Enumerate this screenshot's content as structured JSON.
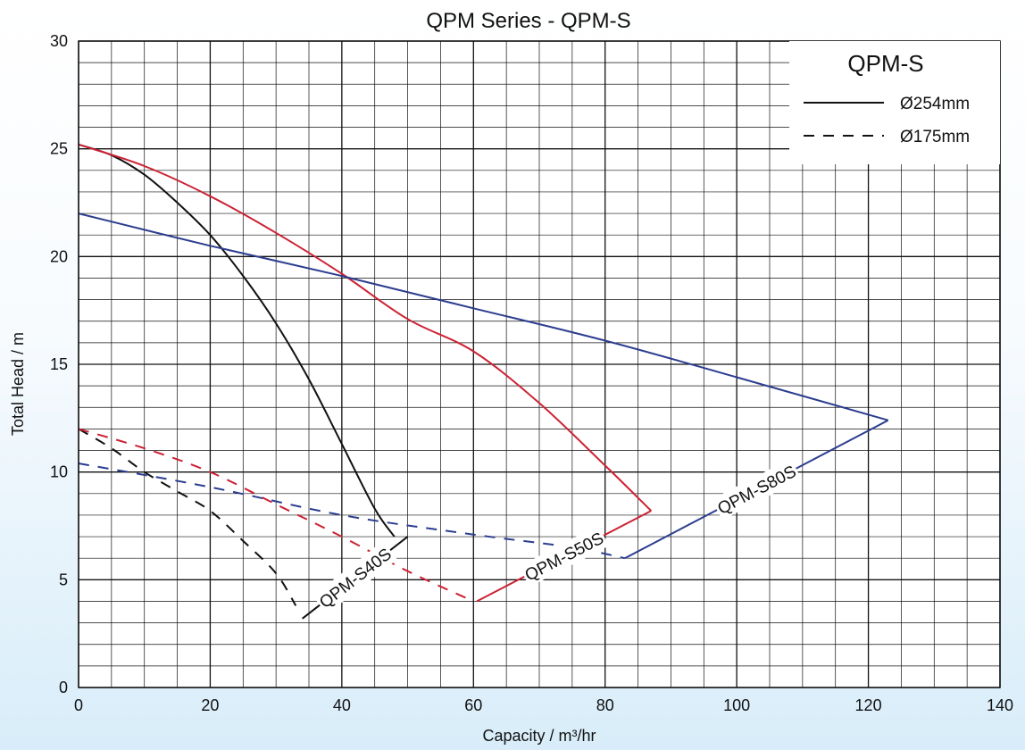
{
  "chart_data": {
    "type": "line",
    "title": "QPM Series - QPM-S",
    "xlabel": "Capacity / m³/hr",
    "ylabel": "Total Head / m",
    "xlim": [
      0,
      140
    ],
    "ylim": [
      0,
      30
    ],
    "x_ticks": [
      "0",
      "20",
      "40",
      "60",
      "80",
      "100",
      "120",
      "140"
    ],
    "y_ticks": [
      "0",
      "5",
      "10",
      "15",
      "20",
      "25",
      "30"
    ],
    "grid": true,
    "legend": {
      "title": "QPM-S",
      "placement": "top-right",
      "entries": [
        {
          "label": "Ø254mm",
          "style": "solid"
        },
        {
          "label": "Ø175mm",
          "style": "dashed"
        }
      ]
    },
    "series": [
      {
        "model": "QPM-S40S",
        "impeller": "Ø254mm",
        "style": "solid",
        "color": "#111111",
        "points": [
          [
            0,
            25.2
          ],
          [
            5,
            24.7
          ],
          [
            10,
            23.8
          ],
          [
            15,
            22.5
          ],
          [
            20,
            21.0
          ],
          [
            25,
            19.1
          ],
          [
            30,
            16.9
          ],
          [
            35,
            14.3
          ],
          [
            40,
            11.3
          ],
          [
            45,
            8.3
          ],
          [
            48,
            7.0
          ]
        ]
      },
      {
        "model": "QPM-S40S",
        "impeller": "Ø175mm",
        "style": "dashed",
        "color": "#111111",
        "points": [
          [
            0,
            12.0
          ],
          [
            5,
            11.1
          ],
          [
            10,
            10.0
          ],
          [
            15,
            9.1
          ],
          [
            20,
            8.2
          ],
          [
            25,
            6.8
          ],
          [
            30,
            5.3
          ],
          [
            33,
            3.8
          ]
        ]
      },
      {
        "model": "QPM-S50S",
        "impeller": "Ø254mm",
        "style": "solid",
        "color": "#cc2233",
        "points": [
          [
            0,
            25.2
          ],
          [
            10,
            24.2
          ],
          [
            20,
            22.8
          ],
          [
            30,
            21.1
          ],
          [
            40,
            19.2
          ],
          [
            50,
            17.1
          ],
          [
            60,
            15.6
          ],
          [
            70,
            13.2
          ],
          [
            80,
            10.3
          ],
          [
            87,
            8.2
          ]
        ]
      },
      {
        "model": "QPM-S50S",
        "impeller": "Ø175mm",
        "style": "dashed",
        "color": "#cc2233",
        "points": [
          [
            0,
            12.0
          ],
          [
            10,
            11.1
          ],
          [
            20,
            10.0
          ],
          [
            30,
            8.5
          ],
          [
            40,
            7.0
          ],
          [
            50,
            5.4
          ],
          [
            60,
            4.0
          ]
        ]
      },
      {
        "model": "QPM-S80S",
        "impeller": "Ø254mm",
        "style": "solid",
        "color": "#2c3d8f",
        "points": [
          [
            0,
            22.0
          ],
          [
            20,
            20.5
          ],
          [
            40,
            19.1
          ],
          [
            60,
            17.6
          ],
          [
            80,
            16.1
          ],
          [
            100,
            14.4
          ],
          [
            123,
            12.4
          ]
        ]
      },
      {
        "model": "QPM-S80S",
        "impeller": "Ø175mm",
        "style": "dashed",
        "color": "#2c3d8f",
        "points": [
          [
            0,
            10.4
          ],
          [
            20,
            9.3
          ],
          [
            40,
            8.0
          ],
          [
            60,
            7.1
          ],
          [
            75,
            6.5
          ],
          [
            83,
            6.0
          ]
        ]
      }
    ],
    "range_boundaries": [
      {
        "label": "QPM-S40S",
        "color": "#111111",
        "points": [
          [
            34,
            3.2
          ],
          [
            50,
            7.0
          ]
        ]
      },
      {
        "label": "QPM-S50S",
        "color": "#cc2233",
        "points": [
          [
            60.5,
            4.0
          ],
          [
            87,
            8.2
          ]
        ]
      },
      {
        "label": "QPM-S80S",
        "color": "#2c3d8f",
        "points": [
          [
            83,
            6.0
          ],
          [
            123,
            12.4
          ]
        ]
      }
    ]
  }
}
